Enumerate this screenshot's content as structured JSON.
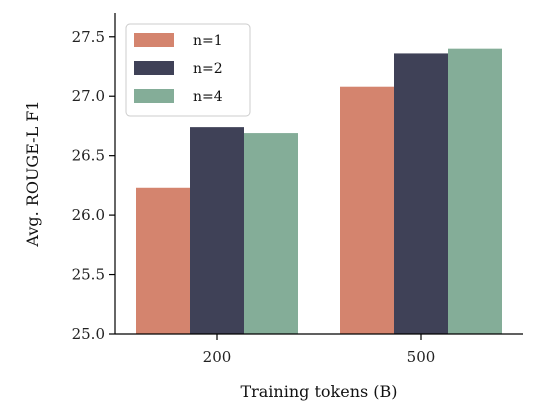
{
  "chart_data": {
    "type": "bar",
    "categories": [
      "200",
      "500"
    ],
    "series": [
      {
        "name": "n=1",
        "values": [
          26.23,
          27.08
        ],
        "color": "#d4846e"
      },
      {
        "name": "n=2",
        "values": [
          26.74,
          27.36
        ],
        "color": "#3f4157"
      },
      {
        "name": "n=4",
        "values": [
          26.69,
          27.4
        ],
        "color": "#84ad98"
      }
    ],
    "xlabel": "Training tokens (B)",
    "ylabel": "Avg. ROUGE-L F1",
    "ylim": [
      25.0,
      27.7
    ],
    "yticks": [
      "25.0",
      "25.5",
      "26.0",
      "26.5",
      "27.0",
      "27.5"
    ],
    "grid": false,
    "legend_position": "top-left"
  }
}
